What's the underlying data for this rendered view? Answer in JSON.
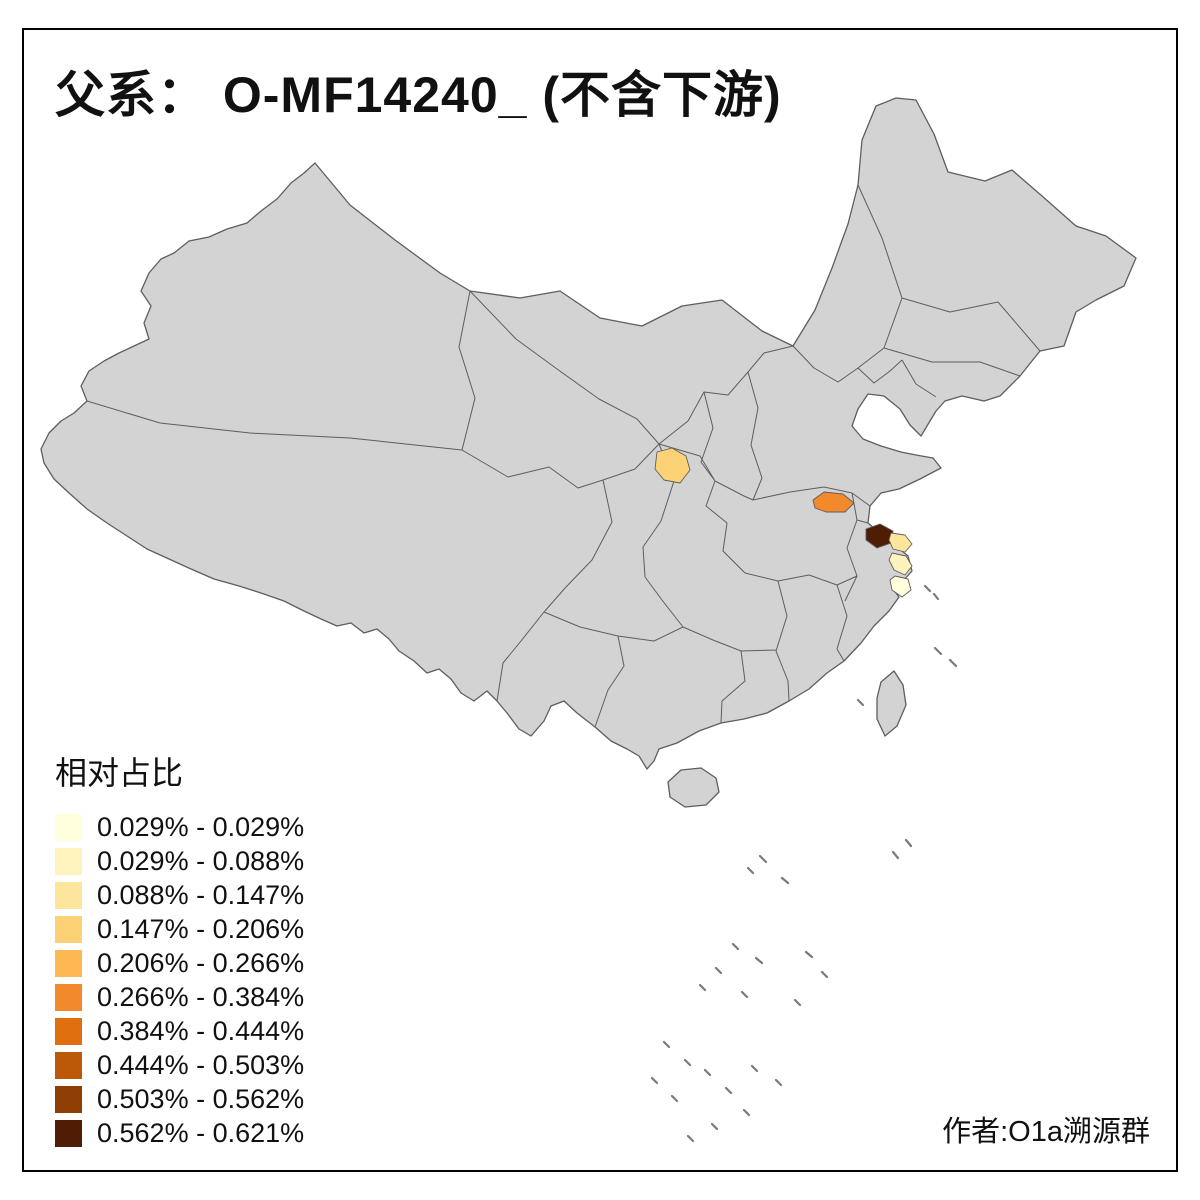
{
  "title": {
    "text": "父系：  O-MF14240_ (不含下游)"
  },
  "legend": {
    "title": "相对占比",
    "items": [
      {
        "label": "0.029% - 0.029%",
        "color": "#FFFFDE"
      },
      {
        "label": "0.029% - 0.088%",
        "color": "#FEF3BC"
      },
      {
        "label": "0.088% - 0.147%",
        "color": "#FDE69B"
      },
      {
        "label": "0.147% - 0.206%",
        "color": "#FDD276"
      },
      {
        "label": "0.206% - 0.266%",
        "color": "#FDB854"
      },
      {
        "label": "0.266% - 0.384%",
        "color": "#F28A2D"
      },
      {
        "label": "0.384% - 0.444%",
        "color": "#E06F10"
      },
      {
        "label": "0.444% - 0.503%",
        "color": "#BC5907"
      },
      {
        "label": "0.503% - 0.562%",
        "color": "#8F3E04"
      },
      {
        "label": "0.562% - 0.621%",
        "color": "#4E1D03"
      }
    ]
  },
  "credit": {
    "text": "作者:O1a溯源群"
  },
  "map": {
    "base_fill": "#D3D3D3",
    "border_color": "#5E5E5E",
    "background": "#FFFFFF",
    "regions": [
      {
        "id": "highlight-region-1",
        "bin": "0.147% - 0.206%",
        "color": "#FDD276"
      },
      {
        "id": "highlight-region-2",
        "bin": "0.266% - 0.384%",
        "color": "#F28A2D"
      },
      {
        "id": "highlight-region-3",
        "bin": "0.562% - 0.621%",
        "color": "#4E1D03"
      },
      {
        "id": "highlight-region-4",
        "bin": "0.088% - 0.147%",
        "color": "#FDE69B"
      },
      {
        "id": "highlight-region-5",
        "bin": "0.029% - 0.088%",
        "color": "#FEF3BC"
      },
      {
        "id": "highlight-region-6",
        "bin": "0.029% - 0.029%",
        "color": "#FFFFDE"
      }
    ]
  }
}
